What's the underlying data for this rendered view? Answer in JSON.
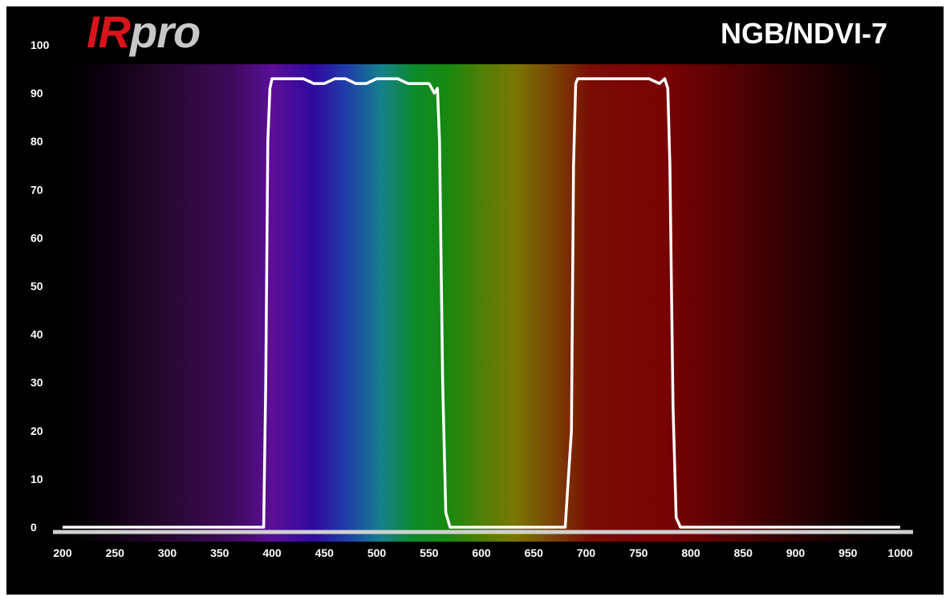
{
  "brand": {
    "ir": "IR",
    "pro": "pro"
  },
  "model": "NGB/NDVI-7",
  "colors": {
    "background": "#000000",
    "curve": "#ffffff",
    "brand_red": "#d8141b",
    "brand_gray": "#c8c8c8"
  },
  "chart_data": {
    "type": "line",
    "title": "NGB/NDVI-7",
    "xlabel": "",
    "ylabel": "",
    "xlim": [
      200,
      1000
    ],
    "ylim": [
      -3,
      100
    ],
    "x_ticks": [
      200,
      250,
      300,
      350,
      400,
      450,
      500,
      550,
      600,
      650,
      700,
      750,
      800,
      850,
      900,
      950,
      1000
    ],
    "y_ticks": [
      0,
      10,
      20,
      30,
      40,
      50,
      60,
      70,
      80,
      90,
      100
    ],
    "x_tick_labels": [
      "200",
      "250",
      "300",
      "350",
      "400",
      "450",
      "500",
      "550",
      "600",
      "650",
      "700",
      "750",
      "800",
      "850",
      "900",
      "950",
      "1000"
    ],
    "y_tick_labels": [
      "0",
      "10",
      "20",
      "30",
      "40",
      "50",
      "60",
      "70",
      "80",
      "90",
      "100"
    ],
    "grid": false,
    "background": "visible spectrum gradient",
    "series": [
      {
        "x": [
          200,
          380,
          392,
          394,
          396,
          398,
          400,
          410,
          420,
          430,
          440,
          450,
          460,
          470,
          480,
          490,
          500,
          510,
          520,
          530,
          540,
          550,
          555,
          558,
          560,
          563,
          566,
          570,
          600,
          650,
          680,
          686,
          688,
          690,
          692,
          700,
          710,
          720,
          730,
          740,
          750,
          760,
          770,
          775,
          778,
          780,
          783,
          786,
          790,
          800,
          850,
          900,
          1000
        ],
        "y": [
          0,
          0,
          0,
          30,
          80,
          91,
          93,
          93,
          93,
          93,
          92,
          92,
          93,
          93,
          92,
          92,
          93,
          93,
          93,
          92,
          92,
          92,
          90,
          91,
          80,
          30,
          3,
          0,
          0,
          0,
          0,
          20,
          75,
          92,
          93,
          93,
          93,
          93,
          93,
          93,
          93,
          93,
          92,
          93,
          91,
          75,
          25,
          2,
          0,
          0,
          0,
          0,
          0
        ]
      }
    ]
  }
}
